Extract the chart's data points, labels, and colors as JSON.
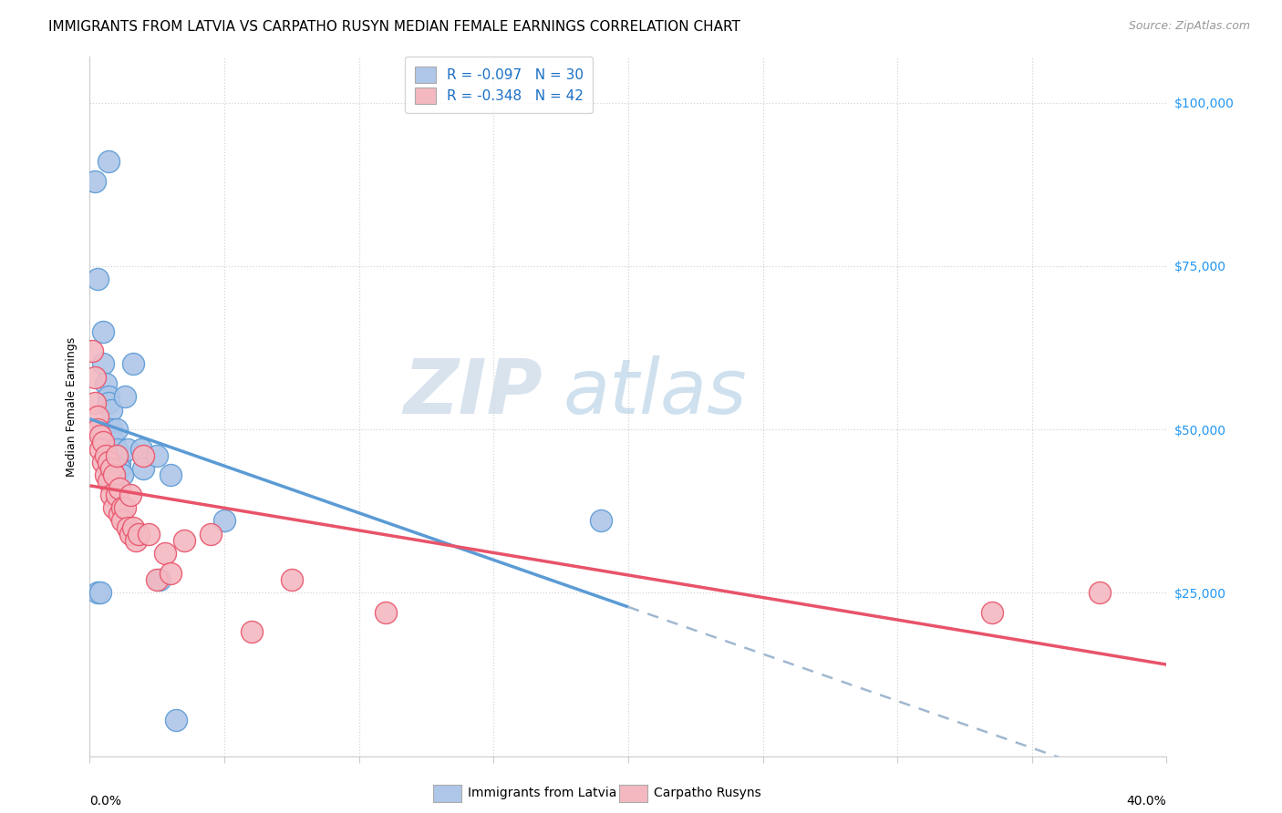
{
  "title": "IMMIGRANTS FROM LATVIA VS CARPATHO RUSYN MEDIAN FEMALE EARNINGS CORRELATION CHART",
  "source": "Source: ZipAtlas.com",
  "ylabel": "Median Female Earnings",
  "y_ticks": [
    0,
    25000,
    50000,
    75000,
    100000
  ],
  "y_tick_labels": [
    "",
    "$25,000",
    "$50,000",
    "$75,000",
    "$100,000"
  ],
  "x_min": 0.0,
  "x_max": 0.4,
  "y_min": 0,
  "y_max": 107000,
  "legend_r1": "R = -0.097",
  "legend_n1": "N = 30",
  "legend_r2": "R = -0.348",
  "legend_n2": "N = 42",
  "color_latvia": "#aec6e8",
  "color_rusyn": "#f4b8c1",
  "color_latvia_line": "#5b9bd5",
  "color_rusyn_line": "#e8536a",
  "color_dashed": "#a0b8d0",
  "watermark_zip": "ZIP",
  "watermark_atlas": "atlas",
  "title_fontsize": 11,
  "axis_label_fontsize": 9,
  "tick_fontsize": 10,
  "source_fontsize": 9,
  "latvia_x": [
    0.002,
    0.007,
    0.003,
    0.005,
    0.005,
    0.006,
    0.007,
    0.007,
    0.008,
    0.008,
    0.009,
    0.01,
    0.01,
    0.01,
    0.011,
    0.011,
    0.012,
    0.013,
    0.014,
    0.016,
    0.019,
    0.02,
    0.025,
    0.03,
    0.05,
    0.003,
    0.004,
    0.026,
    0.032,
    0.19
  ],
  "latvia_y": [
    88000,
    91000,
    73000,
    65000,
    60000,
    57000,
    55000,
    54000,
    53000,
    50000,
    48000,
    50000,
    47000,
    46000,
    45000,
    44000,
    43000,
    55000,
    47000,
    60000,
    47000,
    44000,
    46000,
    43000,
    36000,
    25000,
    25000,
    27000,
    5500,
    36000
  ],
  "rusyn_x": [
    0.001,
    0.002,
    0.002,
    0.003,
    0.003,
    0.004,
    0.004,
    0.005,
    0.005,
    0.006,
    0.006,
    0.007,
    0.007,
    0.008,
    0.008,
    0.009,
    0.009,
    0.01,
    0.01,
    0.011,
    0.011,
    0.012,
    0.012,
    0.013,
    0.014,
    0.015,
    0.015,
    0.016,
    0.017,
    0.018,
    0.02,
    0.022,
    0.025,
    0.028,
    0.03,
    0.035,
    0.045,
    0.06,
    0.075,
    0.11,
    0.335,
    0.375
  ],
  "rusyn_y": [
    62000,
    58000,
    54000,
    52000,
    50000,
    49000,
    47000,
    48000,
    45000,
    46000,
    43000,
    45000,
    42000,
    44000,
    40000,
    43000,
    38000,
    46000,
    40000,
    41000,
    37000,
    38000,
    36000,
    38000,
    35000,
    34000,
    40000,
    35000,
    33000,
    34000,
    46000,
    34000,
    27000,
    31000,
    28000,
    33000,
    34000,
    19000,
    27000,
    22000,
    22000,
    25000
  ]
}
